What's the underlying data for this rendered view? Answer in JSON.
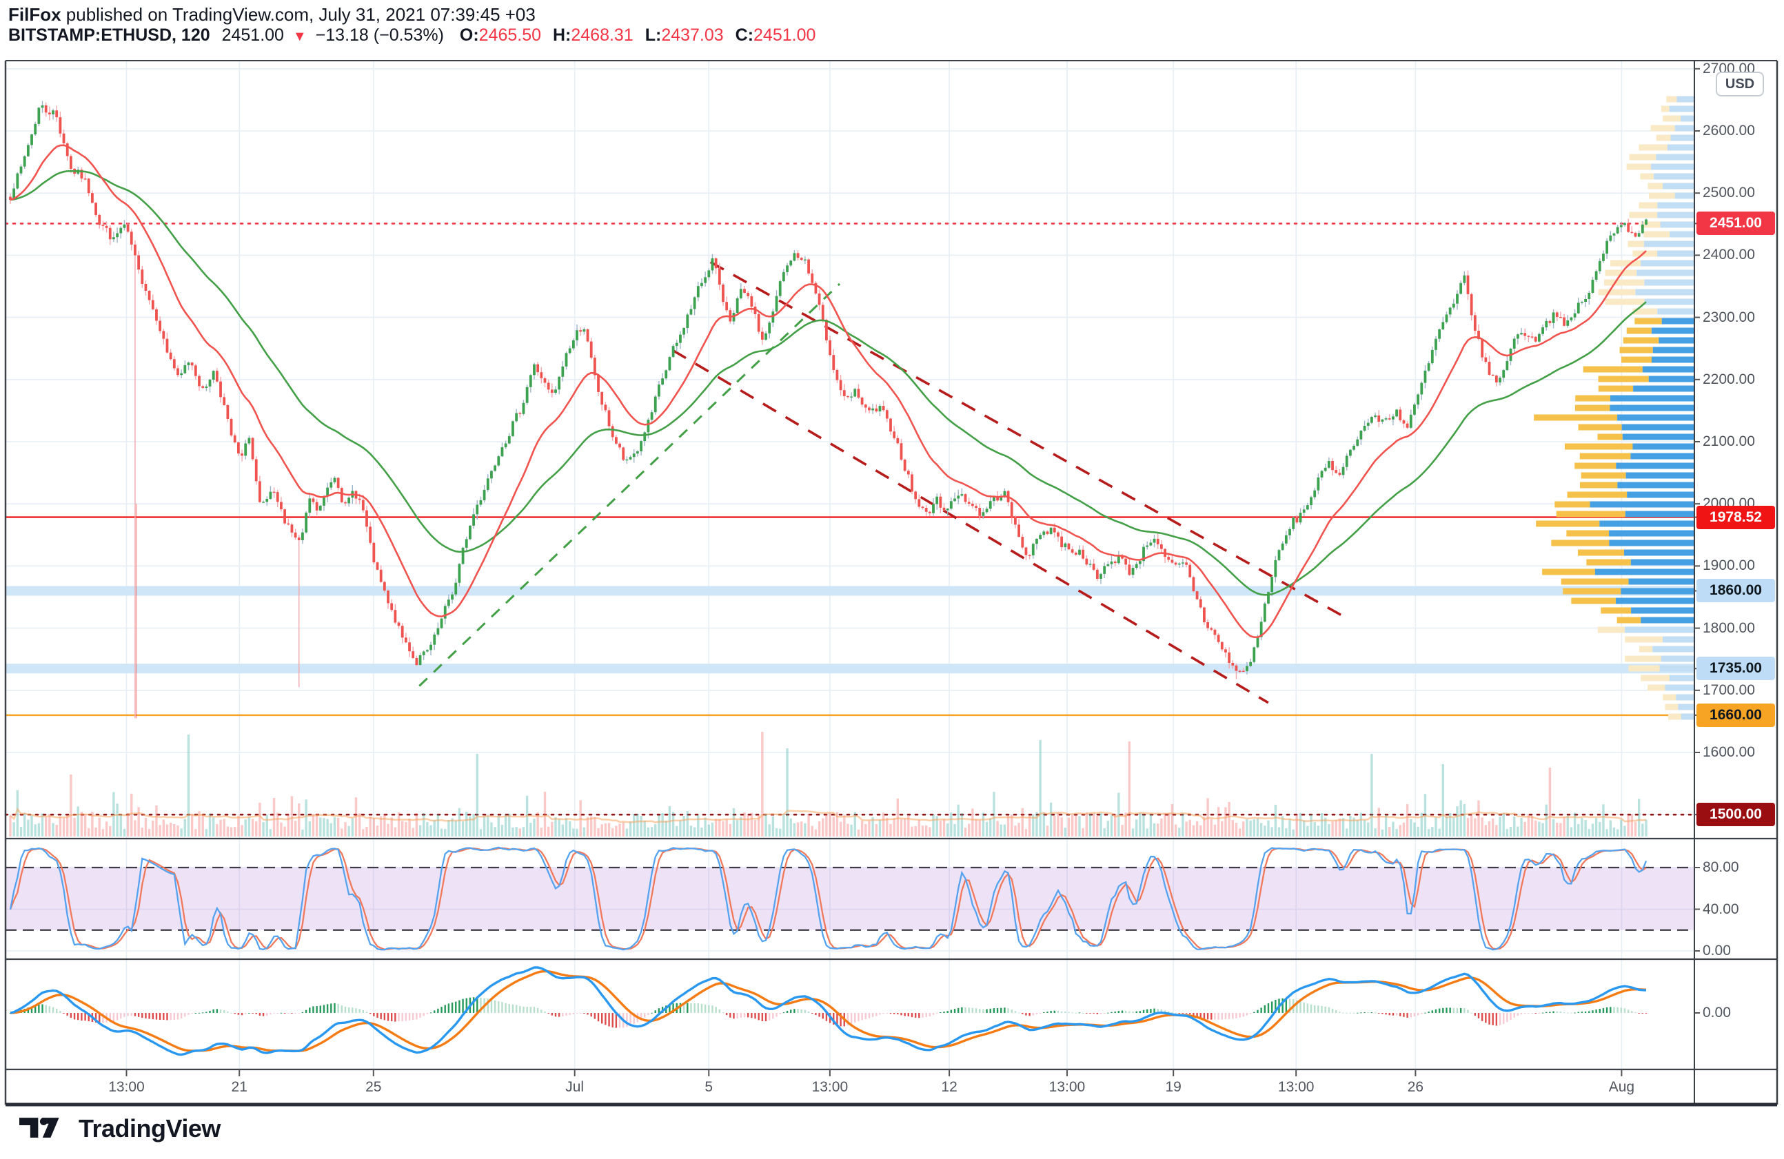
{
  "header": {
    "author": "FilFox",
    "byline": " published on TradingView.com, July 31, 2021 07:39:45 +03",
    "symbol": "BITSTAMP:ETHUSD, 120",
    "last_price": "2451.00",
    "direction": "▼",
    "change": "−13.18 (−0.53%)",
    "o_label": "O:",
    "o_value": "2465.50",
    "h_label": "H:",
    "h_value": "2468.31",
    "l_label": "L:",
    "l_value": "2437.03",
    "c_label": "C:",
    "c_value": "2451.00"
  },
  "price_axis": {
    "currency": "USD",
    "ticks": [
      {
        "text": "2700.00",
        "price": 2700
      },
      {
        "text": "2600.00",
        "price": 2600
      },
      {
        "text": "2500.00",
        "price": 2500
      },
      {
        "text": "2400.00",
        "price": 2400
      },
      {
        "text": "2300.00",
        "price": 2300
      },
      {
        "text": "2200.00",
        "price": 2200
      },
      {
        "text": "2100.00",
        "price": 2100
      },
      {
        "text": "2000.00",
        "price": 2000
      },
      {
        "text": "1900.00",
        "price": 1900
      },
      {
        "text": "1800.00",
        "price": 1800
      },
      {
        "text": "1700.00",
        "price": 1700
      },
      {
        "text": "1600.00",
        "price": 1600
      }
    ],
    "badges": [
      {
        "text": "2451.00",
        "price": 2451,
        "bg": "#f23645",
        "fg": "#ffffff"
      },
      {
        "text": "1978.52",
        "price": 1978.52,
        "bg": "#f01414",
        "fg": "#ffffff"
      },
      {
        "text": "1860.00",
        "price": 1860,
        "bg": "#bedcf5",
        "fg": "#10181f"
      },
      {
        "text": "1735.00",
        "price": 1735,
        "bg": "#bedcf5",
        "fg": "#10181f"
      },
      {
        "text": "1660.00",
        "price": 1660,
        "bg": "#f7a424",
        "fg": "#10181f"
      },
      {
        "text": "1500.00",
        "price": 1500,
        "bg": "#9a0d10",
        "fg": "#ffffff"
      }
    ],
    "stoch_ticks": [
      {
        "text": "80.00",
        "v": 80
      },
      {
        "text": "40.00",
        "v": 40
      },
      {
        "text": "0.00",
        "v": 0
      }
    ],
    "macd_ticks": [
      {
        "text": "0.00",
        "v": 0
      }
    ]
  },
  "time_axis": {
    "labels": [
      {
        "text": "13:00",
        "t": 0.071
      },
      {
        "text": "21",
        "t": 0.14
      },
      {
        "text": "25",
        "t": 0.222
      },
      {
        "text": "Jul",
        "t": 0.345
      },
      {
        "text": "5",
        "t": 0.427
      },
      {
        "text": "13:00",
        "t": 0.501
      },
      {
        "text": "12",
        "t": 0.574
      },
      {
        "text": "13:00",
        "t": 0.646
      },
      {
        "text": "19",
        "t": 0.711
      },
      {
        "text": "13:00",
        "t": 0.786
      },
      {
        "text": "26",
        "t": 0.859
      },
      {
        "text": "Aug",
        "t": 0.985
      }
    ]
  },
  "footer": {
    "logo_text": "TradingView"
  },
  "colors": {
    "up": "#3da24f",
    "down": "#ef5350",
    "wick_up": "#9db5c9",
    "wick_down": "#f2a6ac",
    "ma_fast": "#f1544e",
    "ma_slow": "#43a047",
    "grid": "#e7eef6",
    "frame": "#3b3f46",
    "text": "#131722",
    "axis_text": "#51555e",
    "accent_red": "#f23645",
    "stoch_k": "#55a3ef",
    "stoch_d": "#f0795c",
    "stoch_band": "rgba(170,110,210,0.20)",
    "macd_line": "#2b98f0",
    "macd_signal": "#f57b15",
    "hist_pos": "#259a5b",
    "hist_pos_light": "#b7dfcb",
    "hist_neg": "#dd4b4b",
    "hist_neg_light": "#f6c9d3",
    "profile_yellow": "#f6c14a",
    "profile_blue": "#459fe3",
    "profile_yellow_faded": "#f9e9c4",
    "profile_blue_faded": "#c2def4",
    "vol_up": "rgba(38,166,154,0.32)",
    "vol_down": "rgba(239,83,80,0.32)",
    "vol_ma": "rgba(247,166,96,0.55)"
  },
  "chart_data": {
    "type": "candlestick",
    "symbol": "BITSTAMP:ETHUSD",
    "interval_minutes": 120,
    "last_ohlc": {
      "open": 2465.5,
      "high": 2468.31,
      "low": 2437.03,
      "close": 2451.0,
      "change": -13.18,
      "change_pct": -0.53
    },
    "y_axis_range_usd": [
      1461,
      2713
    ],
    "num_candles": 460,
    "price_path": [
      [
        0,
        2495
      ],
      [
        0.009,
        2560
      ],
      [
        0.018,
        2640
      ],
      [
        0.028,
        2625
      ],
      [
        0.037,
        2540
      ],
      [
        0.046,
        2520
      ],
      [
        0.054,
        2455
      ],
      [
        0.063,
        2425
      ],
      [
        0.07,
        2450
      ],
      [
        0.079,
        2370
      ],
      [
        0.088,
        2310
      ],
      [
        0.096,
        2245
      ],
      [
        0.103,
        2200
      ],
      [
        0.11,
        2235
      ],
      [
        0.117,
        2180
      ],
      [
        0.125,
        2215
      ],
      [
        0.134,
        2120
      ],
      [
        0.141,
        2065
      ],
      [
        0.145,
        2120
      ],
      [
        0.153,
        1990
      ],
      [
        0.16,
        2020
      ],
      [
        0.167,
        1980
      ],
      [
        0.174,
        1945
      ],
      [
        0.178,
        1940
      ],
      [
        0.183,
        2010
      ],
      [
        0.188,
        1985
      ],
      [
        0.193,
        2020
      ],
      [
        0.199,
        2050
      ],
      [
        0.204,
        1990
      ],
      [
        0.209,
        2020
      ],
      [
        0.215,
        2000
      ],
      [
        0.22,
        1930
      ],
      [
        0.226,
        1875
      ],
      [
        0.231,
        1840
      ],
      [
        0.237,
        1800
      ],
      [
        0.242,
        1775
      ],
      [
        0.248,
        1745
      ],
      [
        0.254,
        1760
      ],
      [
        0.259,
        1780
      ],
      [
        0.265,
        1825
      ],
      [
        0.272,
        1870
      ],
      [
        0.279,
        1950
      ],
      [
        0.285,
        1995
      ],
      [
        0.292,
        2040
      ],
      [
        0.299,
        2085
      ],
      [
        0.306,
        2120
      ],
      [
        0.313,
        2160
      ],
      [
        0.32,
        2225
      ],
      [
        0.325,
        2200
      ],
      [
        0.332,
        2170
      ],
      [
        0.339,
        2235
      ],
      [
        0.346,
        2275
      ],
      [
        0.351,
        2285
      ],
      [
        0.357,
        2205
      ],
      [
        0.363,
        2150
      ],
      [
        0.369,
        2105
      ],
      [
        0.376,
        2065
      ],
      [
        0.383,
        2085
      ],
      [
        0.39,
        2130
      ],
      [
        0.397,
        2190
      ],
      [
        0.404,
        2240
      ],
      [
        0.411,
        2280
      ],
      [
        0.418,
        2330
      ],
      [
        0.425,
        2370
      ],
      [
        0.43,
        2395
      ],
      [
        0.435,
        2330
      ],
      [
        0.441,
        2295
      ],
      [
        0.447,
        2345
      ],
      [
        0.453,
        2320
      ],
      [
        0.46,
        2260
      ],
      [
        0.466,
        2305
      ],
      [
        0.472,
        2370
      ],
      [
        0.479,
        2400
      ],
      [
        0.485,
        2395
      ],
      [
        0.491,
        2350
      ],
      [
        0.497,
        2290
      ],
      [
        0.503,
        2220
      ],
      [
        0.51,
        2165
      ],
      [
        0.517,
        2180
      ],
      [
        0.524,
        2145
      ],
      [
        0.531,
        2155
      ],
      [
        0.538,
        2125
      ],
      [
        0.545,
        2075
      ],
      [
        0.552,
        2015
      ],
      [
        0.559,
        1982
      ],
      [
        0.566,
        2005
      ],
      [
        0.573,
        1992
      ],
      [
        0.58,
        2018
      ],
      [
        0.587,
        2000
      ],
      [
        0.594,
        1982
      ],
      [
        0.601,
        2008
      ],
      [
        0.608,
        2018
      ],
      [
        0.615,
        1955
      ],
      [
        0.622,
        1915
      ],
      [
        0.629,
        1950
      ],
      [
        0.636,
        1962
      ],
      [
        0.643,
        1935
      ],
      [
        0.65,
        1925
      ],
      [
        0.657,
        1915
      ],
      [
        0.664,
        1878
      ],
      [
        0.671,
        1905
      ],
      [
        0.678,
        1915
      ],
      [
        0.685,
        1888
      ],
      [
        0.692,
        1922
      ],
      [
        0.699,
        1950
      ],
      [
        0.705,
        1915
      ],
      [
        0.711,
        1898
      ],
      [
        0.718,
        1905
      ],
      [
        0.724,
        1858
      ],
      [
        0.73,
        1812
      ],
      [
        0.737,
        1785
      ],
      [
        0.743,
        1756
      ],
      [
        0.75,
        1728
      ],
      [
        0.757,
        1738
      ],
      [
        0.764,
        1800
      ],
      [
        0.77,
        1875
      ],
      [
        0.777,
        1933
      ],
      [
        0.784,
        1970
      ],
      [
        0.791,
        1990
      ],
      [
        0.798,
        2028
      ],
      [
        0.805,
        2065
      ],
      [
        0.812,
        2048
      ],
      [
        0.819,
        2085
      ],
      [
        0.826,
        2120
      ],
      [
        0.833,
        2140
      ],
      [
        0.84,
        2132
      ],
      [
        0.847,
        2150
      ],
      [
        0.854,
        2122
      ],
      [
        0.861,
        2178
      ],
      [
        0.868,
        2235
      ],
      [
        0.875,
        2290
      ],
      [
        0.882,
        2318
      ],
      [
        0.889,
        2365
      ],
      [
        0.896,
        2272
      ],
      [
        0.903,
        2215
      ],
      [
        0.91,
        2192
      ],
      [
        0.917,
        2252
      ],
      [
        0.924,
        2280
      ],
      [
        0.931,
        2262
      ],
      [
        0.938,
        2290
      ],
      [
        0.945,
        2308
      ],
      [
        0.951,
        2282
      ],
      [
        0.958,
        2318
      ],
      [
        0.965,
        2338
      ],
      [
        0.972,
        2392
      ],
      [
        0.979,
        2440
      ],
      [
        0.986,
        2452
      ],
      [
        0.993,
        2432
      ],
      [
        1,
        2451
      ]
    ],
    "special_lows": [
      {
        "t": 0.077,
        "low": 1655
      },
      {
        "t": 0.177,
        "low": 1705
      },
      {
        "t": 0.75,
        "low": 1718
      }
    ],
    "levels": [
      {
        "price": 2451,
        "style": "dotted",
        "color": "#f23645",
        "label": "2451.00"
      },
      {
        "price": 1978.52,
        "style": "solid",
        "color": "#f23030",
        "label": "1978.52"
      },
      {
        "price": 1860,
        "style": "band",
        "color": "#cfe6f8",
        "label": "1860.00"
      },
      {
        "price": 1735,
        "style": "band",
        "color": "#cfe6f8",
        "label": "1735.00"
      },
      {
        "price": 1660,
        "style": "solid",
        "color": "#f7a424",
        "label": "1660.00"
      },
      {
        "price": 1500,
        "style": "dotted",
        "color": "#8e1515",
        "label": "1500.00"
      }
    ],
    "trendlines": [
      {
        "from": [
          0.428,
          2389
        ],
        "to": [
          0.817,
          1816
        ],
        "color": "#b71c1c",
        "style": "dashed",
        "name": "descending-channel-upper"
      },
      {
        "from": [
          0.405,
          2247
        ],
        "to": [
          0.769,
          1680
        ],
        "color": "#b71c1c",
        "style": "dashed",
        "name": "descending-channel-lower"
      },
      {
        "from": [
          0.25,
          1707
        ],
        "to": [
          0.507,
          2354
        ],
        "color": "#43a047",
        "style": "dashed",
        "name": "ascending-support"
      }
    ],
    "moving_averages": [
      {
        "period": 20,
        "color": "#f1544e"
      },
      {
        "period": 55,
        "color": "#43a047"
      }
    ],
    "indicators": [
      {
        "name": "Stochastic",
        "upper_band": 80,
        "lower_band": 20,
        "scale": [
          0,
          40,
          80
        ]
      },
      {
        "name": "MACD",
        "zero_label": "0.00"
      }
    ],
    "volume_profile": {
      "value_area_usd": [
        1800,
        2295
      ],
      "width_points": [
        [
          2660,
          40
        ],
        [
          2600,
          55
        ],
        [
          2560,
          90
        ],
        [
          2520,
          70
        ],
        [
          2480,
          80
        ],
        [
          2450,
          95
        ],
        [
          2420,
          85
        ],
        [
          2380,
          110
        ],
        [
          2350,
          150
        ],
        [
          2320,
          120
        ],
        [
          2295,
          100
        ],
        [
          2270,
          90
        ],
        [
          2250,
          95
        ],
        [
          2220,
          130
        ],
        [
          2190,
          165
        ],
        [
          2160,
          195
        ],
        [
          2130,
          185
        ],
        [
          2100,
          160
        ],
        [
          2070,
          150
        ],
        [
          2040,
          165
        ],
        [
          2010,
          180
        ],
        [
          1980,
          205
        ],
        [
          1950,
          200
        ],
        [
          1920,
          175
        ],
        [
          1890,
          190
        ],
        [
          1860,
          165
        ],
        [
          1830,
          140
        ],
        [
          1800,
          120
        ],
        [
          1770,
          95
        ],
        [
          1740,
          105
        ],
        [
          1710,
          70
        ],
        [
          1680,
          45
        ],
        [
          1650,
          30
        ]
      ]
    },
    "volume_spikes": [
      [
        0.037,
        90
      ],
      [
        0.109,
        148
      ],
      [
        0.285,
        120
      ],
      [
        0.46,
        152
      ],
      [
        0.475,
        128
      ],
      [
        0.63,
        140
      ],
      [
        0.685,
        138
      ],
      [
        0.833,
        120
      ],
      [
        0.875,
        105
      ],
      [
        0.942,
        100
      ]
    ]
  }
}
